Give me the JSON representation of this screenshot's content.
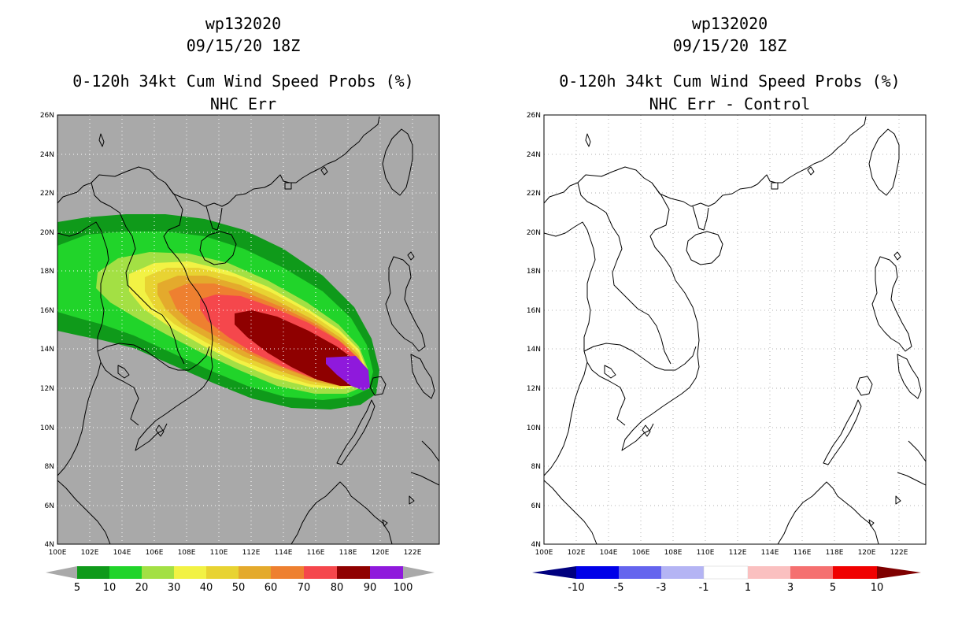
{
  "colors": {
    "land_background_left": "#a9a9a9",
    "grid_left": "#ffffff",
    "grid_right": "#b0b0b0",
    "prob_levels": [
      "#0f9a1a",
      "#21d42a",
      "#a3e044",
      "#f2f244",
      "#e8d332",
      "#e4aa2c",
      "#ee8030",
      "#f5474c",
      "#8f0000",
      "#8f19dc"
    ],
    "diff_levels": [
      "#00007f",
      "#0000e8",
      "#6464ee",
      "#b4b4f4",
      "#ffffff",
      "#fac0c0",
      "#f57070",
      "#f00000",
      "#7f0000"
    ]
  },
  "axes": {
    "lon_ticks": [
      "100E",
      "102E",
      "104E",
      "106E",
      "108E",
      "110E",
      "112E",
      "114E",
      "116E",
      "118E",
      "120E",
      "122E"
    ],
    "lat_ticks": [
      "26N",
      "24N",
      "22N",
      "20N",
      "18N",
      "16N",
      "14N",
      "12N",
      "10N",
      "8N",
      "6N",
      "4N"
    ]
  },
  "left": {
    "title1": "wp132020",
    "title2": "09/15/20 18Z",
    "title3": "0-120h 34kt Cum Wind Speed Probs (%)",
    "title4": "NHC Err",
    "colorbar_labels": [
      "5",
      "10",
      "20",
      "30",
      "40",
      "50",
      "60",
      "70",
      "80",
      "90",
      "100"
    ],
    "probability_contours": [
      5,
      10,
      20,
      30,
      40,
      50,
      60,
      70,
      80,
      90
    ]
  },
  "right": {
    "title1": "wp132020",
    "title2": "09/15/20 18Z",
    "title3": "0-120h 34kt Cum Wind Speed Probs (%)",
    "title4": "NHC Err - Control",
    "colorbar_labels": [
      "-10",
      "-5",
      "-3",
      "-1",
      "1",
      "3",
      "5",
      "10"
    ]
  }
}
